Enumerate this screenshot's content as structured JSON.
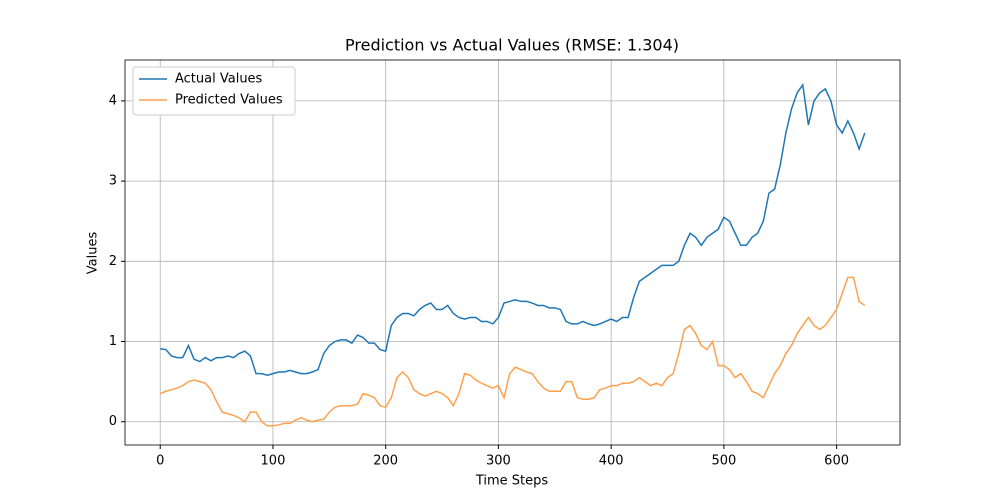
{
  "chart_data": {
    "type": "line",
    "title": "Prediction vs Actual Values (RMSE: 1.304)",
    "x_label": "Time Steps",
    "y_label": "Values",
    "x": [
      0,
      5,
      10,
      15,
      20,
      25,
      30,
      35,
      40,
      45,
      50,
      55,
      60,
      65,
      70,
      75,
      80,
      85,
      90,
      95,
      100,
      105,
      110,
      115,
      120,
      125,
      130,
      135,
      140,
      145,
      150,
      155,
      160,
      165,
      170,
      175,
      180,
      185,
      190,
      195,
      200,
      205,
      210,
      215,
      220,
      225,
      230,
      235,
      240,
      245,
      250,
      255,
      260,
      265,
      270,
      275,
      280,
      285,
      290,
      295,
      300,
      305,
      310,
      315,
      320,
      325,
      330,
      335,
      340,
      345,
      350,
      355,
      360,
      365,
      370,
      375,
      380,
      385,
      390,
      395,
      400,
      405,
      410,
      415,
      420,
      425,
      430,
      435,
      440,
      445,
      450,
      455,
      460,
      465,
      470,
      475,
      480,
      485,
      490,
      495,
      500,
      505,
      510,
      515,
      520,
      525,
      530,
      535,
      540,
      545,
      550,
      555,
      560,
      565,
      570,
      575,
      580,
      585,
      590,
      595,
      600,
      605,
      610,
      615,
      620,
      625
    ],
    "series": [
      {
        "name": "Actual Values",
        "color": "#1f77b4",
        "values": [
          0.91,
          0.9,
          0.82,
          0.8,
          0.8,
          0.95,
          0.78,
          0.75,
          0.8,
          0.76,
          0.8,
          0.8,
          0.82,
          0.8,
          0.85,
          0.88,
          0.82,
          0.6,
          0.6,
          0.58,
          0.6,
          0.62,
          0.62,
          0.64,
          0.62,
          0.6,
          0.6,
          0.62,
          0.65,
          0.85,
          0.95,
          1.0,
          1.02,
          1.02,
          0.98,
          1.08,
          1.05,
          0.98,
          0.98,
          0.9,
          0.88,
          1.2,
          1.3,
          1.35,
          1.35,
          1.32,
          1.4,
          1.45,
          1.48,
          1.4,
          1.4,
          1.45,
          1.35,
          1.3,
          1.28,
          1.3,
          1.3,
          1.25,
          1.25,
          1.22,
          1.3,
          1.48,
          1.5,
          1.52,
          1.5,
          1.5,
          1.48,
          1.45,
          1.45,
          1.42,
          1.42,
          1.4,
          1.25,
          1.22,
          1.22,
          1.25,
          1.22,
          1.2,
          1.22,
          1.25,
          1.28,
          1.25,
          1.3,
          1.3,
          1.55,
          1.75,
          1.8,
          1.85,
          1.9,
          1.95,
          1.95,
          1.95,
          2.0,
          2.2,
          2.35,
          2.3,
          2.2,
          2.3,
          2.35,
          2.4,
          2.55,
          2.5,
          2.35,
          2.2,
          2.2,
          2.3,
          2.35,
          2.5,
          2.85,
          2.9,
          3.2,
          3.6,
          3.9,
          4.1,
          4.2,
          3.7,
          4.0,
          4.1,
          4.15,
          4.0,
          3.7,
          3.6,
          3.75,
          3.6,
          3.4,
          3.6
        ]
      },
      {
        "name": "Predicted Values",
        "color": "#ffa04d",
        "values": [
          0.35,
          0.38,
          0.4,
          0.42,
          0.45,
          0.5,
          0.52,
          0.5,
          0.48,
          0.4,
          0.25,
          0.12,
          0.1,
          0.08,
          0.05,
          0.0,
          0.12,
          0.12,
          0.0,
          -0.05,
          -0.05,
          -0.04,
          -0.02,
          -0.02,
          0.02,
          0.05,
          0.02,
          0.0,
          0.02,
          0.03,
          0.12,
          0.18,
          0.2,
          0.2,
          0.2,
          0.22,
          0.35,
          0.33,
          0.3,
          0.2,
          0.18,
          0.3,
          0.55,
          0.62,
          0.55,
          0.4,
          0.35,
          0.32,
          0.35,
          0.38,
          0.35,
          0.3,
          0.2,
          0.35,
          0.6,
          0.58,
          0.52,
          0.48,
          0.45,
          0.42,
          0.45,
          0.3,
          0.6,
          0.68,
          0.65,
          0.62,
          0.6,
          0.5,
          0.42,
          0.38,
          0.38,
          0.38,
          0.5,
          0.5,
          0.3,
          0.28,
          0.28,
          0.3,
          0.4,
          0.42,
          0.45,
          0.45,
          0.48,
          0.48,
          0.5,
          0.55,
          0.5,
          0.45,
          0.48,
          0.45,
          0.55,
          0.6,
          0.85,
          1.15,
          1.2,
          1.1,
          0.95,
          0.9,
          1.0,
          0.7,
          0.7,
          0.65,
          0.55,
          0.6,
          0.5,
          0.38,
          0.35,
          0.3,
          0.45,
          0.6,
          0.7,
          0.85,
          0.95,
          1.1,
          1.2,
          1.3,
          1.2,
          1.15,
          1.2,
          1.3,
          1.4,
          1.6,
          1.8,
          1.8,
          1.5,
          1.45
        ]
      }
    ],
    "xlim": [
      -31.25,
      656.25
    ],
    "ylim": [
      -0.29,
      4.51
    ],
    "xticks": [
      0,
      100,
      200,
      300,
      400,
      500,
      600
    ],
    "yticks": [
      0,
      1,
      2,
      3,
      4
    ],
    "grid": true,
    "legend": "upper left"
  }
}
